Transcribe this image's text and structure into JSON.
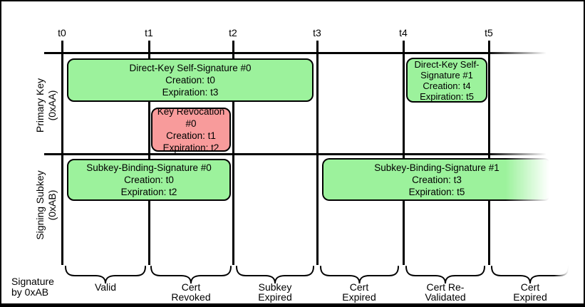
{
  "diagram_type": "key-signature-validity-timeline",
  "ticks": [
    "t0",
    "t1",
    "t2",
    "t3",
    "t4",
    "t5"
  ],
  "rows": [
    {
      "line1": "Primary Key",
      "line2": "(0xAA)"
    },
    {
      "line1": "Signing Subkey",
      "line2": "(0xAB)"
    }
  ],
  "boxes": [
    {
      "name": "direct-key-self-signature-0",
      "lines": [
        "Direct-Key Self-Signature #0",
        "Creation: t0",
        "Expiration: t3"
      ],
      "color": "#9CF29C"
    },
    {
      "name": "key-revocation-0",
      "lines": [
        "Key Revocation #0",
        "Creation: t1",
        "Expiration: t2"
      ],
      "color": "#F89B9B"
    },
    {
      "name": "direct-key-self-signature-1",
      "lines": [
        "Direct-Key Self-",
        "Signature #1",
        "Creation: t4",
        "Expiration: t5"
      ],
      "color": "#9CF29C"
    },
    {
      "name": "subkey-binding-signature-0",
      "lines": [
        "Subkey-Binding-Signature #0",
        "Creation: t0",
        "Expiration: t2"
      ],
      "color": "#9CF29C"
    },
    {
      "name": "subkey-binding-signature-1",
      "lines": [
        "Subkey-Binding-Signature #1",
        "Creation: t3",
        "Expiration: t5"
      ],
      "color": "#9CF29C"
    }
  ],
  "bottom_axis": {
    "label_line1": "Signature",
    "label_line2": "by 0xAB",
    "intervals": [
      {
        "line1": "Valid",
        "line2": ""
      },
      {
        "line1": "Cert",
        "line2": "Revoked"
      },
      {
        "line1": "Subkey",
        "line2": "Expired"
      },
      {
        "line1": "Cert",
        "line2": "Expired"
      },
      {
        "line1": "Cert Re-",
        "line2": "Validated"
      },
      {
        "line1": "Cert",
        "line2": "Expired"
      }
    ]
  },
  "colors": {
    "valid_signature_fill": "#9CF29C",
    "revocation_fill": "#F89B9B",
    "line": "#000000",
    "background": "#FFFFFF"
  }
}
